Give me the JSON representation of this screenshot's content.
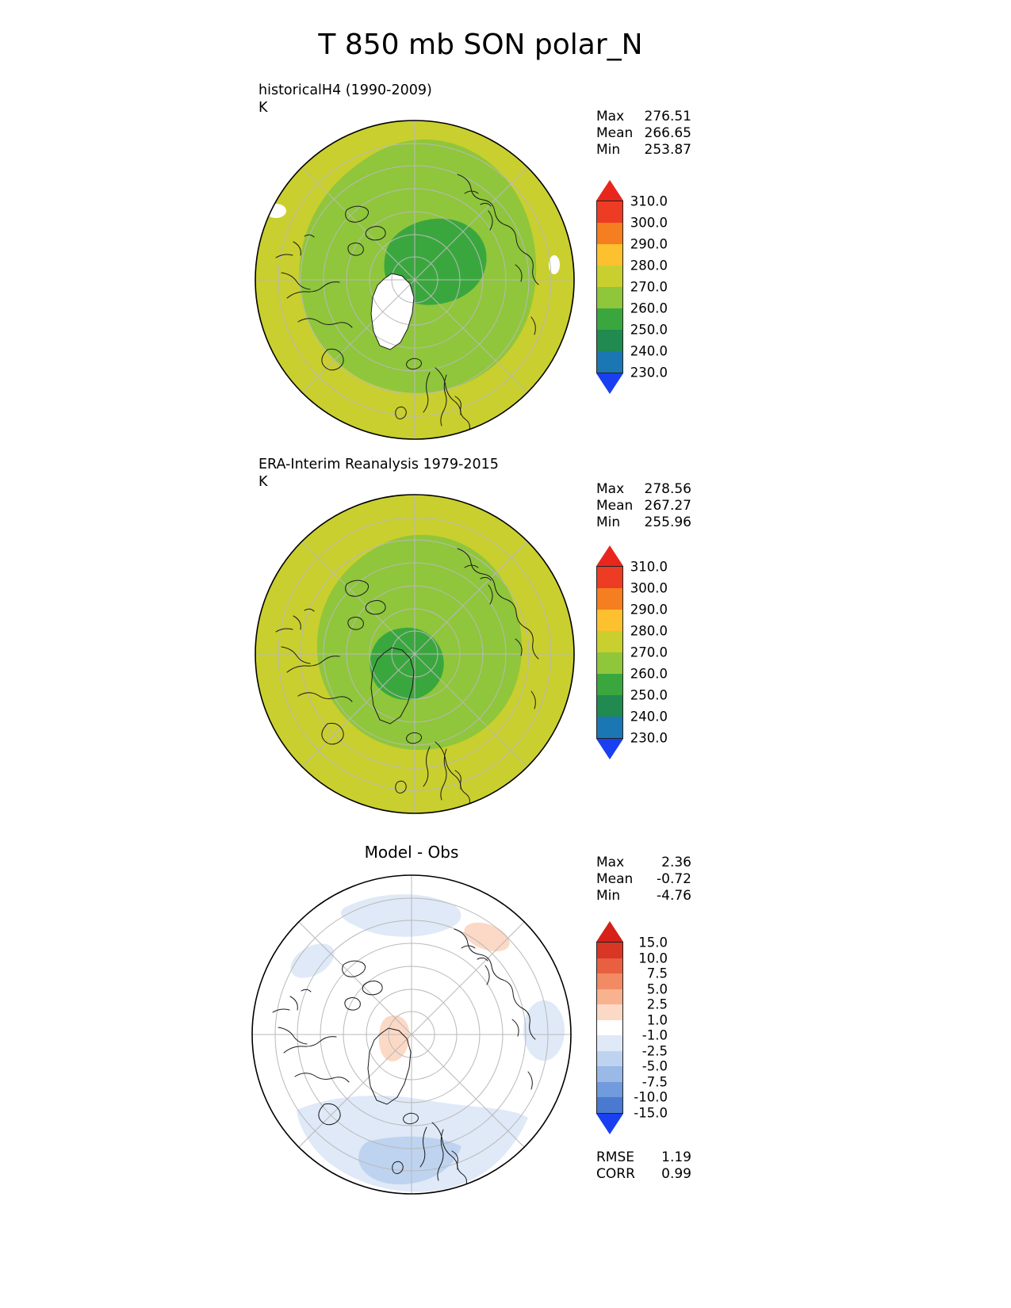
{
  "title": "T 850 mb SON polar_N",
  "panels": [
    {
      "subtitle": "historicalH4 (1990-2009)",
      "units": "K",
      "stats": [
        {
          "label": "Max",
          "value": "276.51"
        },
        {
          "label": "Mean",
          "value": "266.65"
        },
        {
          "label": "Min",
          "value": "253.87"
        }
      ],
      "colorbar": {
        "over": "#e8261d",
        "under": "#1a3ff0",
        "colors": [
          "#ee3b24",
          "#f57e20",
          "#fdc02e",
          "#c9cf2e",
          "#8fc63c",
          "#3aa73e",
          "#208a50",
          "#1b76b4"
        ],
        "ticks": [
          "310.0",
          "300.0",
          "290.0",
          "280.0",
          "270.0",
          "260.0",
          "250.0",
          "240.0",
          "230.0"
        ]
      }
    },
    {
      "subtitle": "ERA-Interim Reanalysis 1979-2015",
      "units": "K",
      "stats": [
        {
          "label": "Max",
          "value": "278.56"
        },
        {
          "label": "Mean",
          "value": "267.27"
        },
        {
          "label": "Min",
          "value": "255.96"
        }
      ],
      "colorbar": {
        "over": "#e8261d",
        "under": "#1a3ff0",
        "colors": [
          "#ee3b24",
          "#f57e20",
          "#fdc02e",
          "#c9cf2e",
          "#8fc63c",
          "#3aa73e",
          "#208a50",
          "#1b76b4"
        ],
        "ticks": [
          "310.0",
          "300.0",
          "290.0",
          "280.0",
          "270.0",
          "260.0",
          "250.0",
          "240.0",
          "230.0"
        ]
      }
    },
    {
      "subtitle": "Model - Obs",
      "stats": [
        {
          "label": "Max",
          "value": "2.36"
        },
        {
          "label": "Mean",
          "value": "-0.72"
        },
        {
          "label": "Min",
          "value": "-4.76"
        }
      ],
      "colorbar": {
        "over": "#d62019",
        "under": "#1a3ff0",
        "colors": [
          "#d93625",
          "#e8603f",
          "#f28a64",
          "#f8b28f",
          "#fcd9c6",
          "#ffffff",
          "#dfe9f7",
          "#bed3f0",
          "#9ab9e7",
          "#709bdc",
          "#4a7ad0"
        ],
        "ticks": [
          "15.0",
          "10.0",
          "7.5",
          "5.0",
          "2.5",
          "1.0",
          "-1.0",
          "-2.5",
          "-5.0",
          "-7.5",
          "-10.0",
          "-15.0"
        ]
      },
      "extra_stats": [
        {
          "label": "RMSE",
          "value": "1.19"
        },
        {
          "label": "CORR",
          "value": "0.99"
        }
      ]
    }
  ],
  "chart_data": [
    {
      "type": "heatmap",
      "subtype": "polar_stereographic_contour_map",
      "title": "historicalH4 (1990-2009)",
      "variable": "T 850 mb",
      "season": "SON",
      "region": "polar_N",
      "units": "K",
      "stats": {
        "max": 276.51,
        "mean": 266.65,
        "min": 253.87
      },
      "levels": [
        230,
        240,
        250,
        260,
        270,
        280,
        290,
        300,
        310
      ],
      "palette_low_to_high": [
        "#1a3ff0",
        "#1b76b4",
        "#208a50",
        "#3aa73e",
        "#8fc63c",
        "#c9cf2e",
        "#fdc02e",
        "#f57e20",
        "#ee3b24",
        "#e8261d"
      ],
      "legend_position": "right",
      "graticule": true
    },
    {
      "type": "heatmap",
      "subtype": "polar_stereographic_contour_map",
      "title": "ERA-Interim Reanalysis 1979-2015",
      "variable": "T 850 mb",
      "season": "SON",
      "region": "polar_N",
      "units": "K",
      "stats": {
        "max": 278.56,
        "mean": 267.27,
        "min": 255.96
      },
      "levels": [
        230,
        240,
        250,
        260,
        270,
        280,
        290,
        300,
        310
      ],
      "palette_low_to_high": [
        "#1a3ff0",
        "#1b76b4",
        "#208a50",
        "#3aa73e",
        "#8fc63c",
        "#c9cf2e",
        "#fdc02e",
        "#f57e20",
        "#ee3b24",
        "#e8261d"
      ],
      "legend_position": "right",
      "graticule": true
    },
    {
      "type": "heatmap",
      "subtype": "polar_stereographic_contour_map_difference",
      "title": "Model - Obs",
      "variable": "T 850 mb",
      "season": "SON",
      "region": "polar_N",
      "units": "K",
      "stats": {
        "max": 2.36,
        "mean": -0.72,
        "min": -4.76,
        "rmse": 1.19,
        "corr": 0.99
      },
      "levels": [
        -15,
        -10,
        -7.5,
        -5,
        -2.5,
        -1,
        1,
        2.5,
        5,
        7.5,
        10,
        15
      ],
      "palette_low_to_high": [
        "#1a3ff0",
        "#4a7ad0",
        "#709bdc",
        "#9ab9e7",
        "#bed3f0",
        "#dfe9f7",
        "#ffffff",
        "#fcd9c6",
        "#f8b28f",
        "#f28a64",
        "#e8603f",
        "#d93625",
        "#d62019"
      ],
      "legend_position": "right",
      "graticule": true
    }
  ]
}
